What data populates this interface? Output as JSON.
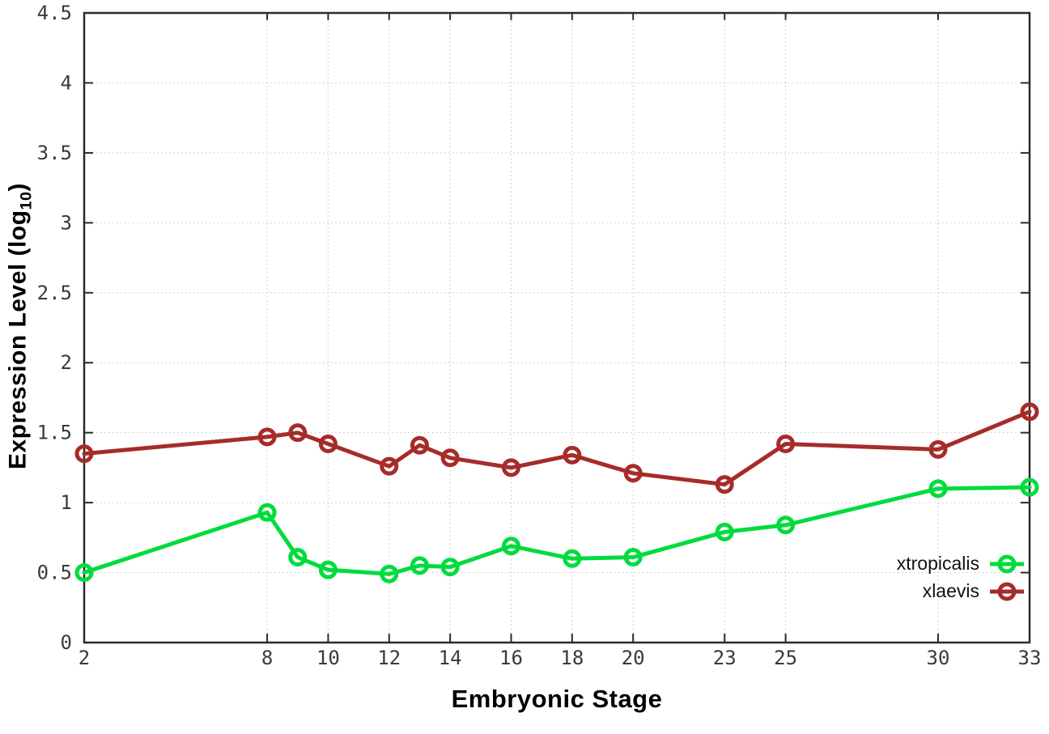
{
  "figure": {
    "background": "#ffffff"
  },
  "chart_data": {
    "type": "line",
    "title": "",
    "xlabel": "Embryonic Stage",
    "ylabel": "Expression Level (log10)",
    "ylabel_parts": {
      "pre": "Expression Level (log",
      "sub": "10",
      "post": ")"
    },
    "x": [
      2,
      8,
      9,
      10,
      12,
      13,
      14,
      16,
      18,
      20,
      23,
      25,
      30,
      33
    ],
    "series": [
      {
        "name": "xtropicalis",
        "color": "#00dc3e",
        "marker": "open-circle",
        "values": [
          0.5,
          0.93,
          0.61,
          0.52,
          0.49,
          0.55,
          0.54,
          0.69,
          0.6,
          0.61,
          0.79,
          0.84,
          1.1,
          1.11
        ]
      },
      {
        "name": "xlaevis",
        "color": "#a62c2a",
        "marker": "open-circle",
        "values": [
          1.35,
          1.47,
          1.5,
          1.42,
          1.26,
          1.41,
          1.32,
          1.25,
          1.34,
          1.21,
          1.13,
          1.42,
          1.38,
          1.65
        ]
      }
    ],
    "xlim": [
      2,
      33
    ],
    "ylim": [
      0,
      4.5
    ],
    "x_ticks": [
      2,
      8,
      10,
      12,
      14,
      16,
      18,
      20,
      23,
      25,
      30,
      33
    ],
    "x_tick_labels": [
      "2",
      "8",
      "10",
      "12",
      "14",
      "16",
      "18",
      "20",
      "23",
      "25",
      "30",
      "33"
    ],
    "y_ticks": [
      0,
      0.5,
      1,
      1.5,
      2,
      2.5,
      3,
      3.5,
      4,
      4.5
    ],
    "y_tick_labels": [
      "0",
      "0.5",
      "1",
      "1.5",
      "2",
      "2.5",
      "3",
      "3.5",
      "4",
      "4.5"
    ],
    "grid": true,
    "legend_position": "inside-right-bottom"
  },
  "style": {
    "grid_color": "#c3c3c3",
    "axis_color": "#2b2b2b",
    "tick_label_color": "#3a3a3a",
    "line_width": 5,
    "marker_radius": 9,
    "marker_stroke": 5
  }
}
